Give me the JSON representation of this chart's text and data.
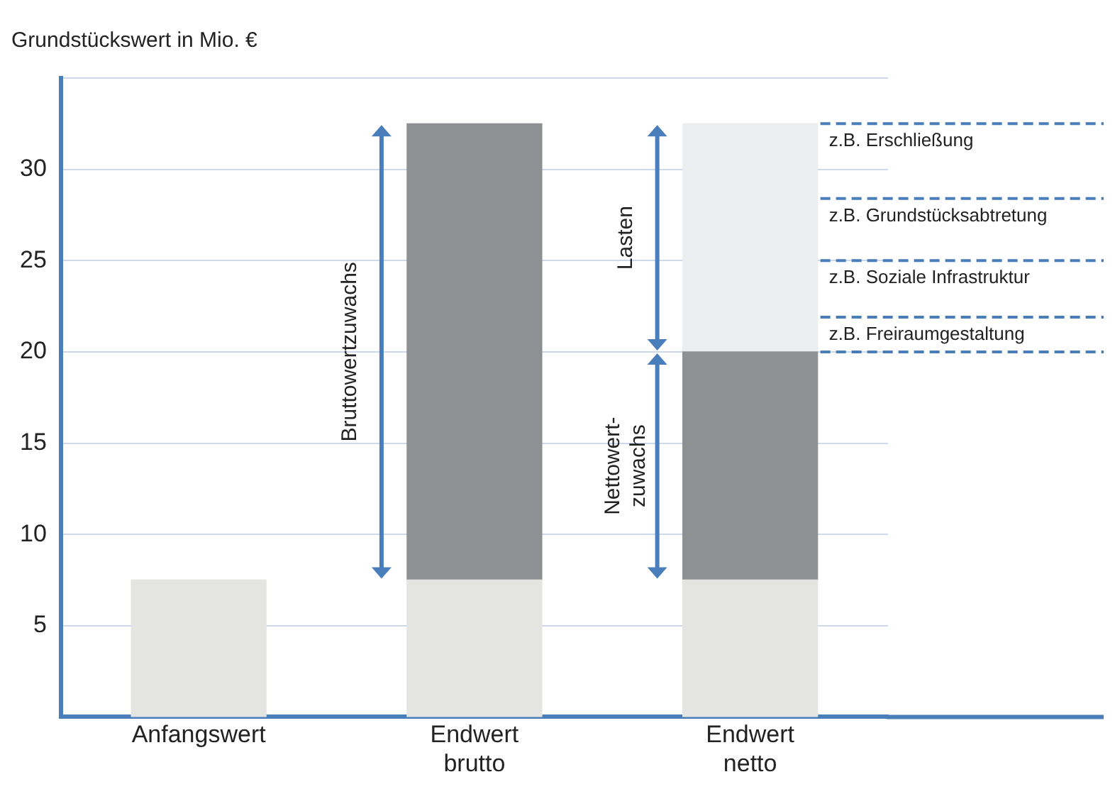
{
  "chart_data": {
    "type": "bar",
    "ylabel": "Grundstückswert in Mio. €",
    "categories": [
      "Anfangswert",
      "Endwert brutto",
      "Endwert netto"
    ],
    "stacked": true,
    "series": [
      {
        "color": "#e4e4e2",
        "values": [
          7.5,
          7.5,
          7.5
        ]
      },
      {
        "color": "#8f9094",
        "values": [
          null,
          25,
          12.5
        ]
      },
      {
        "color": "#ecedef",
        "values": [
          null,
          null,
          12.5
        ]
      }
    ],
    "ylim": [
      0,
      35
    ],
    "yticks": [
      5,
      10,
      15,
      20,
      25,
      30,
      {
        "value": 35,
        "label": null
      }
    ],
    "grid": "y",
    "ref_lines": [
      {
        "axis": "y",
        "value": 32.5,
        "label": "z.B. Erschließung",
        "color": "#4a7ebb",
        "line_style": "dashed"
      },
      {
        "axis": "y",
        "value": 28.4,
        "label": "z.B. Grundstücksabtretung",
        "color": "#4a7ebb",
        "line_style": "dashed"
      },
      {
        "axis": "y",
        "value": 25,
        "label": "z.B. Soziale Infrastruktur",
        "color": "#4a7ebb",
        "line_style": "dashed"
      },
      {
        "axis": "y",
        "value": 21.9,
        "label": "z.B. Freiraumgestaltung",
        "color": "#4a7ebb",
        "line_style": "dashed"
      },
      {
        "axis": "y",
        "value": 20,
        "color": "#4a7ebb",
        "line_style": "dashed"
      }
    ],
    "annotations": [
      "Bruttowertzuwachs",
      "Lasten",
      "Nettowert-zuwachs"
    ]
  }
}
